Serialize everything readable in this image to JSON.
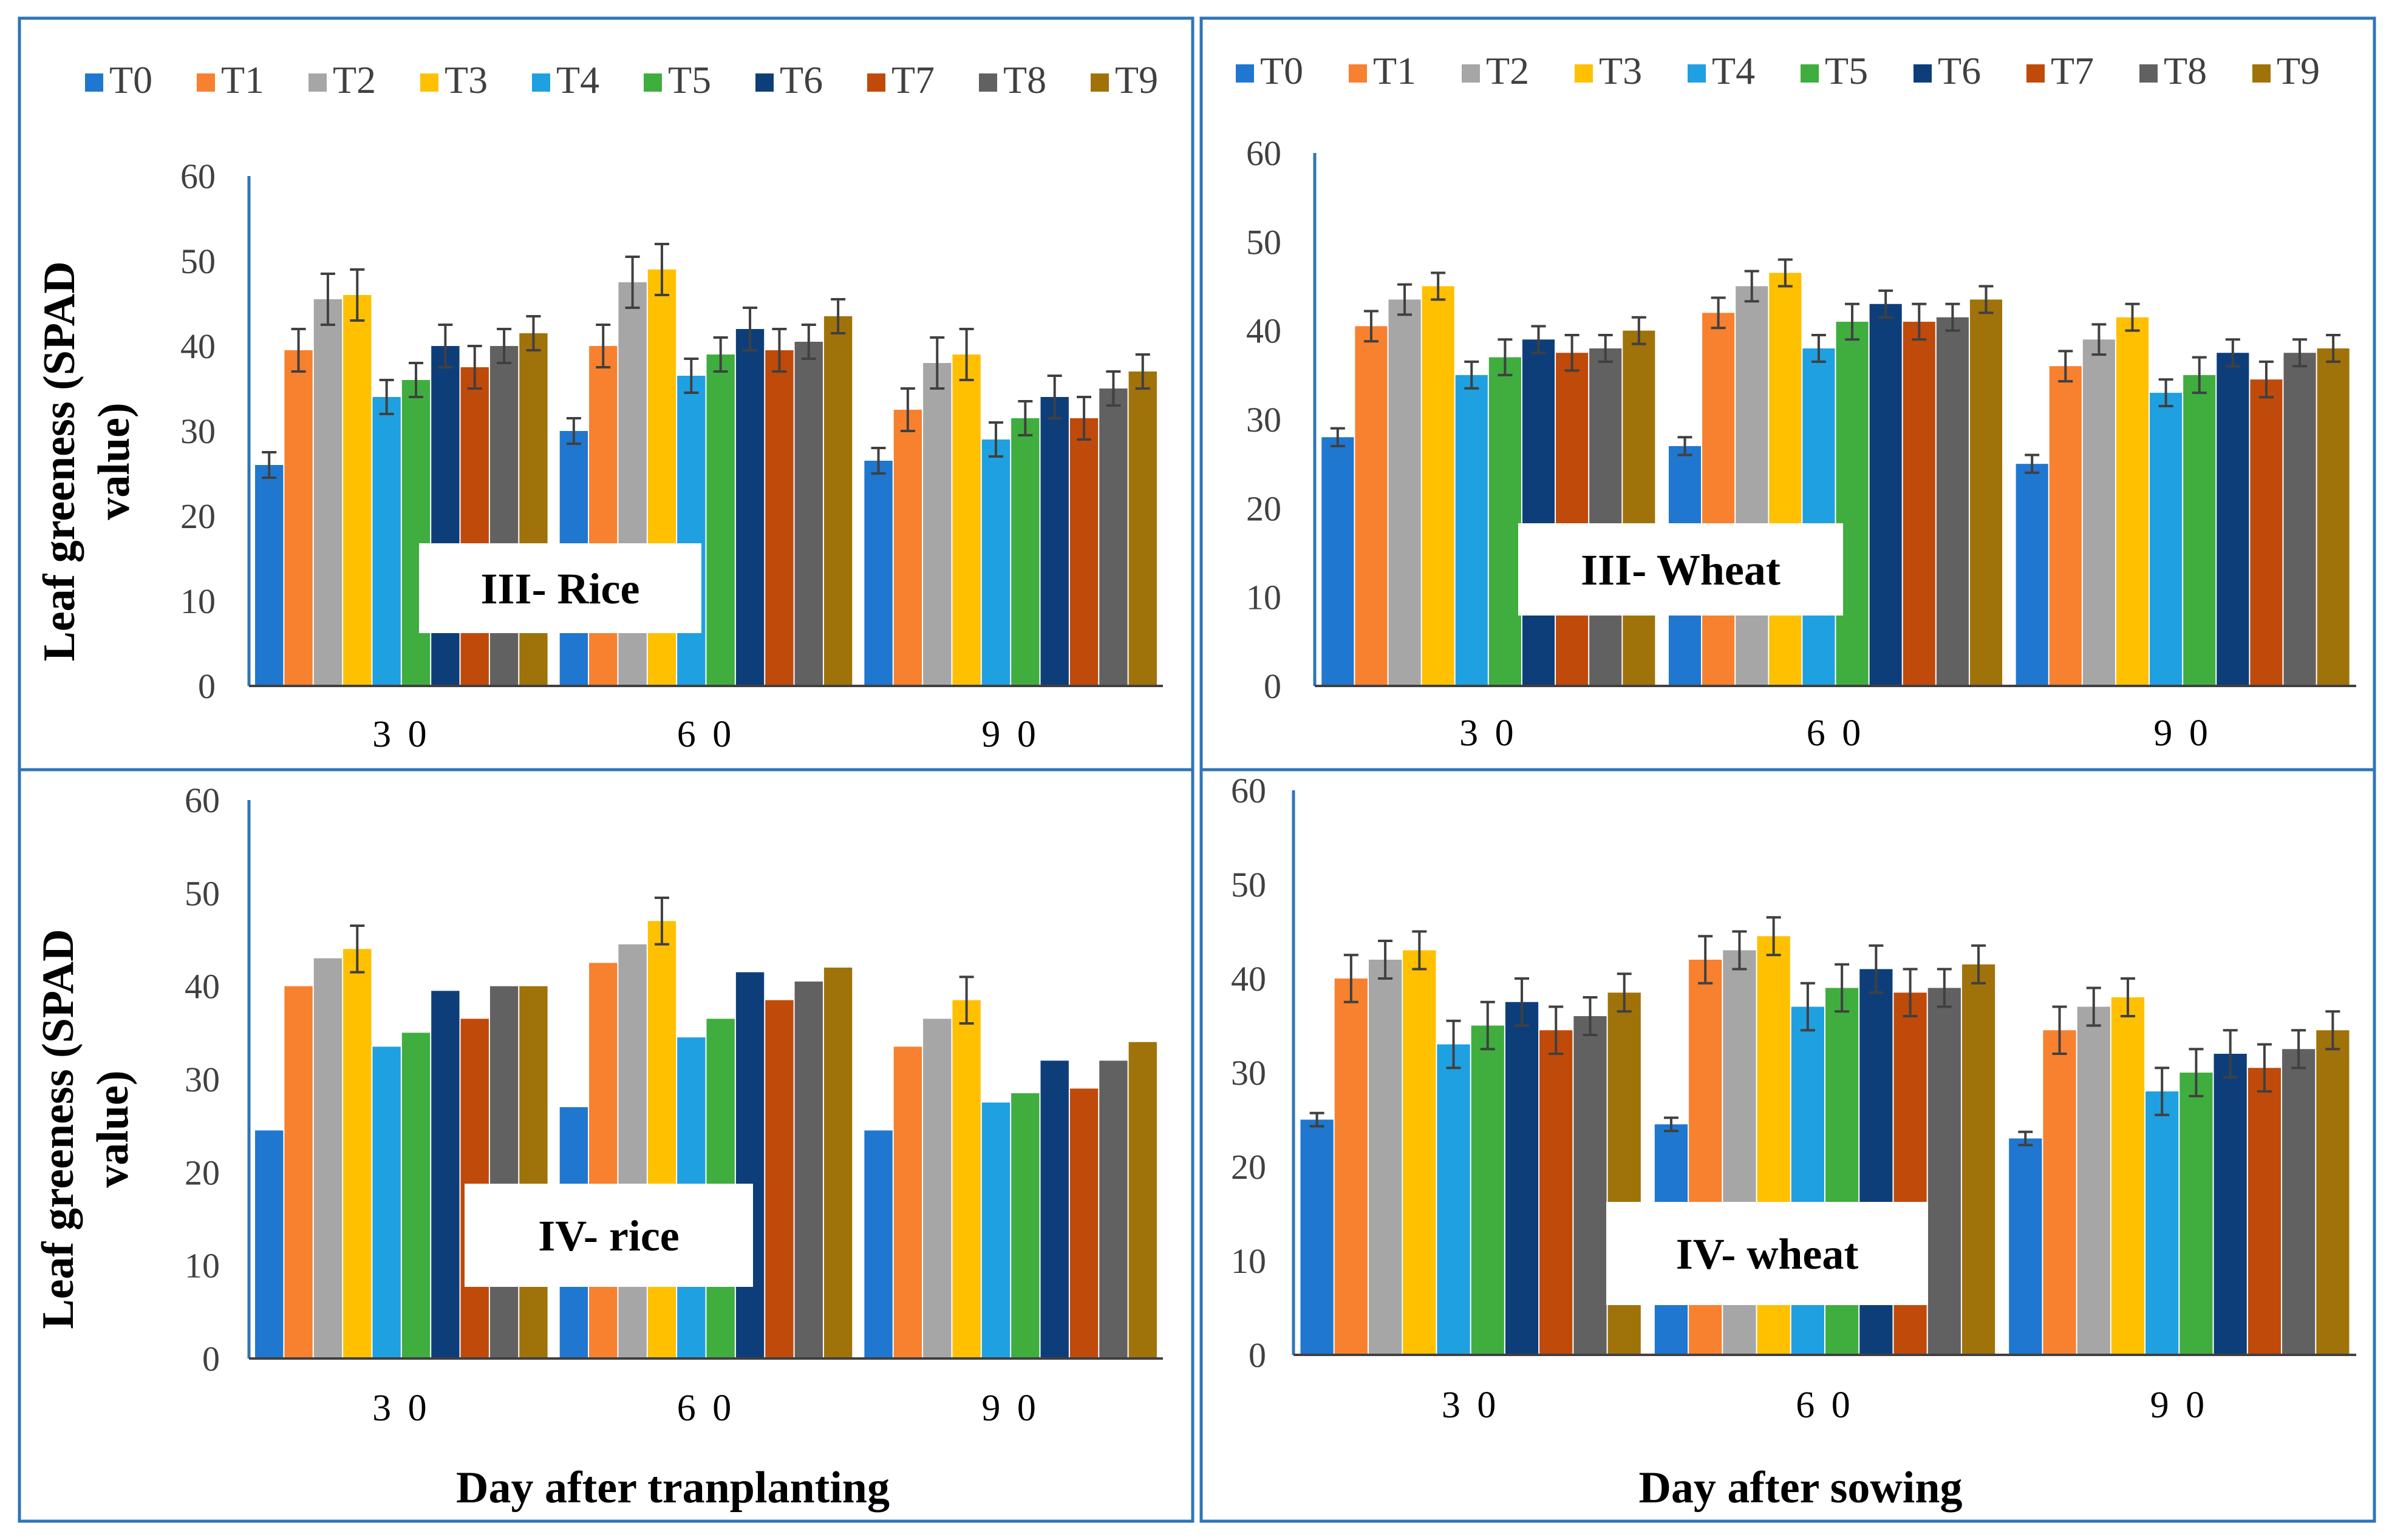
{
  "figure": {
    "y_axis_label_line1": "Leaf greeness (SPAD",
    "y_axis_label_line2": "value)",
    "x_axis_label_left": "Day after tranplanting",
    "x_axis_label_right": "Day after sowing",
    "panel_border_color": "#2e75b6"
  },
  "legend": {
    "entries": [
      "T0",
      "T1",
      "T2",
      "T3",
      "T4",
      "T5",
      "T6",
      "T7",
      "T8",
      "T9"
    ],
    "colors": [
      "#1f77cf",
      "#f7812f",
      "#a6a6a6",
      "#ffc000",
      "#1fa0e0",
      "#3fae3f",
      "#0d3e7a",
      "#c04a0a",
      "#616161",
      "#a0720a"
    ]
  },
  "chart_data": [
    {
      "type": "bar",
      "title": "III- Rice",
      "categories": [
        "3 0",
        "6 0",
        "9 0"
      ],
      "ylim": [
        0,
        60
      ],
      "yticks": [
        0,
        10,
        20,
        30,
        40,
        50,
        60
      ],
      "error_bars": true,
      "series": [
        {
          "name": "T0",
          "values": [
            26,
            30,
            26.5
          ],
          "errors": [
            1.5,
            1.5,
            1.5
          ]
        },
        {
          "name": "T1",
          "values": [
            39.5,
            40,
            32.5
          ],
          "errors": [
            2.5,
            2.5,
            2.5
          ]
        },
        {
          "name": "T2",
          "values": [
            45.5,
            47.5,
            38
          ],
          "errors": [
            3,
            3,
            3
          ]
        },
        {
          "name": "T3",
          "values": [
            46,
            49,
            39
          ],
          "errors": [
            3,
            3,
            3
          ]
        },
        {
          "name": "T4",
          "values": [
            34,
            36.5,
            29
          ],
          "errors": [
            2,
            2,
            2
          ]
        },
        {
          "name": "T5",
          "values": [
            36,
            39,
            31.5
          ],
          "errors": [
            2,
            2,
            2
          ]
        },
        {
          "name": "T6",
          "values": [
            40,
            42,
            34
          ],
          "errors": [
            2.5,
            2.5,
            2.5
          ]
        },
        {
          "name": "T7",
          "values": [
            37.5,
            39.5,
            31.5
          ],
          "errors": [
            2.5,
            2.5,
            2.5
          ]
        },
        {
          "name": "T8",
          "values": [
            40,
            40.5,
            35
          ],
          "errors": [
            2,
            2,
            2
          ]
        },
        {
          "name": "T9",
          "values": [
            41.5,
            43.5,
            37
          ],
          "errors": [
            2,
            2,
            2
          ]
        }
      ]
    },
    {
      "type": "bar",
      "title": "III- Wheat",
      "categories": [
        "3 0",
        "6 0",
        "9 0"
      ],
      "ylim": [
        0,
        60
      ],
      "yticks": [
        0,
        10,
        20,
        30,
        40,
        50,
        60
      ],
      "error_bars": true,
      "series": [
        {
          "name": "T0",
          "values": [
            28,
            27,
            25
          ],
          "errors": [
            1,
            1,
            1
          ]
        },
        {
          "name": "T1",
          "values": [
            40.5,
            42,
            36
          ],
          "errors": [
            1.7,
            1.7,
            1.7
          ]
        },
        {
          "name": "T2",
          "values": [
            43.5,
            45,
            39
          ],
          "errors": [
            1.7,
            1.7,
            1.7
          ]
        },
        {
          "name": "T3",
          "values": [
            45,
            46.5,
            41.5
          ],
          "errors": [
            1.5,
            1.5,
            1.5
          ]
        },
        {
          "name": "T4",
          "values": [
            35,
            38,
            33
          ],
          "errors": [
            1.5,
            1.5,
            1.5
          ]
        },
        {
          "name": "T5",
          "values": [
            37,
            41,
            35
          ],
          "errors": [
            2,
            2,
            2
          ]
        },
        {
          "name": "T6",
          "values": [
            39,
            43,
            37.5
          ],
          "errors": [
            1.5,
            1.5,
            1.5
          ]
        },
        {
          "name": "T7",
          "values": [
            37.5,
            41,
            34.5
          ],
          "errors": [
            2,
            2,
            2
          ]
        },
        {
          "name": "T8",
          "values": [
            38,
            41.5,
            37.5
          ],
          "errors": [
            1.5,
            1.5,
            1.5
          ]
        },
        {
          "name": "T9",
          "values": [
            40,
            43.5,
            38
          ],
          "errors": [
            1.5,
            1.5,
            1.5
          ]
        }
      ]
    },
    {
      "type": "bar",
      "title": "IV- rice",
      "categories": [
        "3 0",
        "6 0",
        "9 0"
      ],
      "ylim": [
        0,
        60
      ],
      "yticks": [
        0,
        10,
        20,
        30,
        40,
        50,
        60
      ],
      "error_bars": false,
      "series": [
        {
          "name": "T0",
          "values": [
            24.5,
            27,
            24.5
          ],
          "errors": [
            0,
            0,
            0
          ]
        },
        {
          "name": "T1",
          "values": [
            40,
            42.5,
            33.5
          ],
          "errors": [
            0,
            0,
            0
          ]
        },
        {
          "name": "T2",
          "values": [
            43,
            44.5,
            36.5
          ],
          "errors": [
            0,
            0,
            0
          ]
        },
        {
          "name": "T3",
          "values": [
            44,
            47,
            38.5
          ],
          "errors": [
            2.5,
            2.5,
            2.5
          ]
        },
        {
          "name": "T4",
          "values": [
            33.5,
            34.5,
            27.5
          ],
          "errors": [
            0,
            0,
            0
          ]
        },
        {
          "name": "T5",
          "values": [
            35,
            36.5,
            28.5
          ],
          "errors": [
            0,
            0,
            0
          ]
        },
        {
          "name": "T6",
          "values": [
            39.5,
            41.5,
            32
          ],
          "errors": [
            0,
            0,
            0
          ]
        },
        {
          "name": "T7",
          "values": [
            36.5,
            38.5,
            29
          ],
          "errors": [
            0,
            0,
            0
          ]
        },
        {
          "name": "T8",
          "values": [
            40,
            40.5,
            32
          ],
          "errors": [
            0,
            0,
            0
          ]
        },
        {
          "name": "T9",
          "values": [
            40,
            42,
            34
          ],
          "errors": [
            0,
            0,
            0
          ]
        }
      ]
    },
    {
      "type": "bar",
      "title": "IV- wheat",
      "categories": [
        "3 0",
        "6 0",
        "9 0"
      ],
      "ylim": [
        0,
        60
      ],
      "yticks": [
        0,
        10,
        20,
        30,
        40,
        50,
        60
      ],
      "error_bars": true,
      "series": [
        {
          "name": "T0",
          "values": [
            25,
            24.5,
            23
          ],
          "errors": [
            0.7,
            0.7,
            0.7
          ]
        },
        {
          "name": "T1",
          "values": [
            40,
            42,
            34.5
          ],
          "errors": [
            2.5,
            2.5,
            2.5
          ]
        },
        {
          "name": "T2",
          "values": [
            42,
            43,
            37
          ],
          "errors": [
            2,
            2,
            2
          ]
        },
        {
          "name": "T3",
          "values": [
            43,
            44.5,
            38
          ],
          "errors": [
            2,
            2,
            2
          ]
        },
        {
          "name": "T4",
          "values": [
            33,
            37,
            28
          ],
          "errors": [
            2.5,
            2.5,
            2.5
          ]
        },
        {
          "name": "T5",
          "values": [
            35,
            39,
            30
          ],
          "errors": [
            2.5,
            2.5,
            2.5
          ]
        },
        {
          "name": "T6",
          "values": [
            37.5,
            41,
            32
          ],
          "errors": [
            2.5,
            2.5,
            2.5
          ]
        },
        {
          "name": "T7",
          "values": [
            34.5,
            38.5,
            30.5
          ],
          "errors": [
            2.5,
            2.5,
            2.5
          ]
        },
        {
          "name": "T8",
          "values": [
            36,
            39,
            32.5
          ],
          "errors": [
            2,
            2,
            2
          ]
        },
        {
          "name": "T9",
          "values": [
            38.5,
            41.5,
            34.5
          ],
          "errors": [
            2,
            2,
            2
          ]
        }
      ]
    }
  ]
}
